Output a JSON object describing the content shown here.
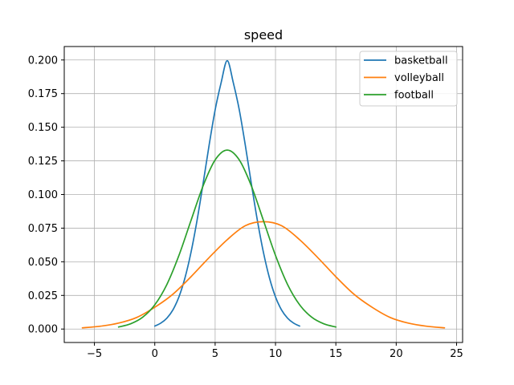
{
  "chart_data": {
    "type": "line",
    "title": "speed",
    "xlabel": "",
    "ylabel": "",
    "xlim": [
      -7.5,
      25.5
    ],
    "ylim": [
      -0.01,
      0.21
    ],
    "xticks": [
      -5,
      0,
      5,
      10,
      15,
      20,
      25
    ],
    "xtick_labels": [
      "−5",
      "0",
      "5",
      "10",
      "15",
      "20",
      "25"
    ],
    "yticks": [
      0.0,
      0.025,
      0.05,
      0.075,
      0.1,
      0.125,
      0.15,
      0.175,
      0.2
    ],
    "ytick_labels": [
      "0.000",
      "0.025",
      "0.050",
      "0.075",
      "0.100",
      "0.125",
      "0.150",
      "0.175",
      "0.200"
    ],
    "grid": true,
    "legend_position": "top-right",
    "series": [
      {
        "name": "basketball",
        "color": "#1f77b4",
        "x": [
          0,
          0.5,
          1,
          1.5,
          2,
          2.5,
          3,
          3.5,
          4,
          4.5,
          5,
          5.5,
          6,
          6.5,
          7,
          7.5,
          8,
          8.5,
          9,
          9.5,
          10,
          10.5,
          11,
          11.5,
          12
        ],
        "y": [
          0.0022,
          0.0044,
          0.0081,
          0.0142,
          0.0239,
          0.038,
          0.057,
          0.0807,
          0.108,
          0.1366,
          0.1629,
          0.1833,
          0.1995,
          0.1833,
          0.1629,
          0.1366,
          0.108,
          0.0807,
          0.057,
          0.038,
          0.0239,
          0.0142,
          0.0081,
          0.0044,
          0.0022
        ]
      },
      {
        "name": "volleyball",
        "color": "#ff7f0e",
        "x": [
          -6,
          -4.5,
          -3,
          -1.5,
          0,
          1.5,
          3,
          4.5,
          6,
          7.5,
          9,
          10.5,
          12,
          13.5,
          15,
          16.5,
          18,
          19.5,
          21,
          22.5,
          24
        ],
        "y": [
          0.0009,
          0.0021,
          0.0044,
          0.0086,
          0.0162,
          0.0259,
          0.0389,
          0.0531,
          0.0664,
          0.0768,
          0.0798,
          0.0768,
          0.0664,
          0.0531,
          0.0389,
          0.0259,
          0.0162,
          0.0086,
          0.0044,
          0.0021,
          0.0009
        ]
      },
      {
        "name": "football",
        "color": "#2ca02c",
        "x": [
          -3,
          -2,
          -1,
          0,
          1,
          2,
          3,
          4,
          5,
          6,
          7,
          8,
          9,
          10,
          11,
          12,
          13,
          14,
          15
        ],
        "y": [
          0.0015,
          0.0039,
          0.0088,
          0.018,
          0.0331,
          0.0547,
          0.0807,
          0.1064,
          0.1257,
          0.133,
          0.1257,
          0.1064,
          0.0807,
          0.0547,
          0.0331,
          0.018,
          0.0088,
          0.0039,
          0.0015
        ]
      }
    ]
  }
}
